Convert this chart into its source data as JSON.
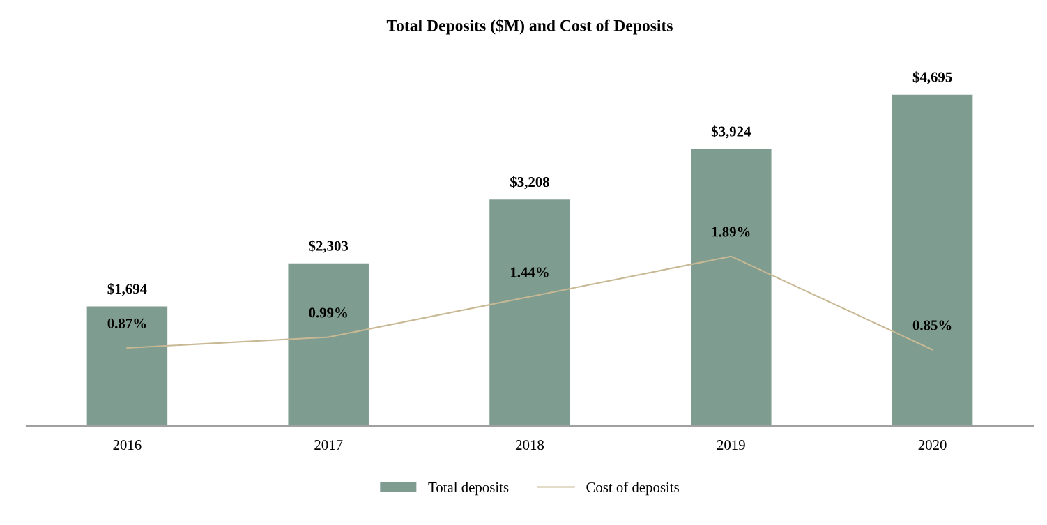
{
  "chart_data": {
    "type": "bar",
    "title": "Total Deposits ($M) and Cost of Deposits",
    "categories": [
      "2016",
      "2017",
      "2018",
      "2019",
      "2020"
    ],
    "series": [
      {
        "name": "Total deposits",
        "color": "#7f9c90",
        "values": [
          1694,
          2303,
          3208,
          3924,
          4695
        ],
        "value_labels": [
          "$1,694",
          "$2,303",
          "$3,208",
          "$3,924",
          "$4,695"
        ]
      },
      {
        "name": "Cost of deposits",
        "type": "line",
        "axis": "y2",
        "color": "#c8b994",
        "values": [
          0.87,
          0.99,
          1.44,
          1.89,
          0.85
        ],
        "value_labels": [
          "0.87%",
          "0.99%",
          "1.44%",
          "1.89%",
          "0.85%"
        ]
      }
    ],
    "tick_labels": "x",
    "grid": false,
    "legend": "bottom",
    "marker": "none",
    "line_style": "solid"
  }
}
